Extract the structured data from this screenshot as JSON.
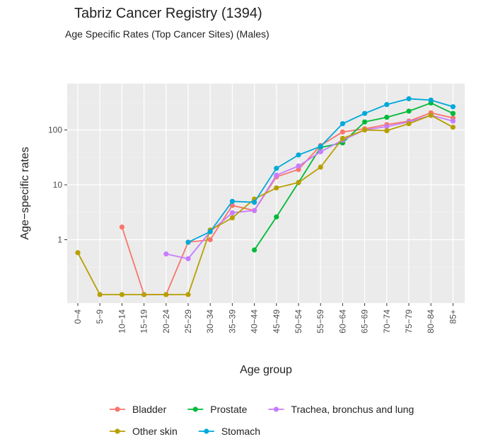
{
  "chart_data": {
    "type": "line",
    "title": "Tabriz Cancer Registry (1394)",
    "subtitle": "Age Specific Rates (Top Cancer Sites) (Males)",
    "xlabel": "Age group",
    "ylabel": "Age−specific rates",
    "y_scale": "log",
    "y_ticks": [
      1,
      10,
      100
    ],
    "y_tick_labels": [
      "1",
      "10",
      "100"
    ],
    "ylim": [
      0.07,
      700
    ],
    "grid": true,
    "legend_position": "bottom",
    "categories": [
      "0−4",
      "5−9",
      "10−14",
      "15−19",
      "20−24",
      "25−29",
      "30−34",
      "35−39",
      "40−44",
      "45−49",
      "50−54",
      "55−59",
      "60−64",
      "65−69",
      "70−74",
      "75−79",
      "80−84",
      "85+"
    ],
    "series": [
      {
        "name": "Bladder",
        "color": "#F8766D",
        "values": [
          null,
          null,
          1.7,
          0.1,
          0.1,
          0.9,
          1.0,
          4.2,
          3.4,
          14,
          19,
          52,
          92,
          105,
          125,
          145,
          205,
          165
        ]
      },
      {
        "name": "Prostate",
        "color": "#00BA38",
        "values": [
          null,
          null,
          null,
          null,
          null,
          null,
          null,
          null,
          0.65,
          2.6,
          11,
          48,
          58,
          140,
          170,
          220,
          310,
          200
        ]
      },
      {
        "name": "Trachea, bronchus and lung",
        "color": "#C77CFF",
        "values": [
          null,
          null,
          null,
          null,
          0.55,
          0.45,
          1.4,
          3.1,
          3.4,
          15,
          22,
          40,
          65,
          100,
          115,
          140,
          185,
          145
        ]
      },
      {
        "name": "Other skin",
        "color": "#B79F00",
        "values": [
          0.58,
          0.1,
          0.1,
          0.1,
          0.1,
          0.1,
          1.5,
          2.5,
          5.5,
          8.8,
          11,
          21,
          70,
          100,
          97,
          130,
          185,
          112
        ]
      },
      {
        "name": "Stomach",
        "color": "#00A9D9",
        "values": [
          null,
          null,
          null,
          null,
          null,
          0.9,
          1.4,
          5.0,
          4.8,
          20,
          35,
          50,
          130,
          200,
          290,
          370,
          350,
          265
        ]
      }
    ],
    "legend_rows": [
      [
        "Bladder",
        "Prostate",
        "Trachea, bronchus and lung"
      ],
      [
        "Other skin",
        "Stomach"
      ]
    ]
  }
}
